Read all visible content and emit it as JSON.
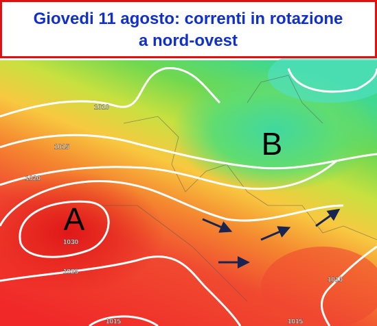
{
  "header": {
    "lines": [
      "Giovedi 11 agosto: correnti in rotazione",
      "a nord-ovest"
    ]
  },
  "map": {
    "pressure_centers": [
      {
        "label": "A"
      },
      {
        "label": "B"
      }
    ],
    "isobar_labels": [
      1010,
      1015,
      1020,
      1030,
      1025,
      1010,
      1015,
      1015
    ]
  }
}
